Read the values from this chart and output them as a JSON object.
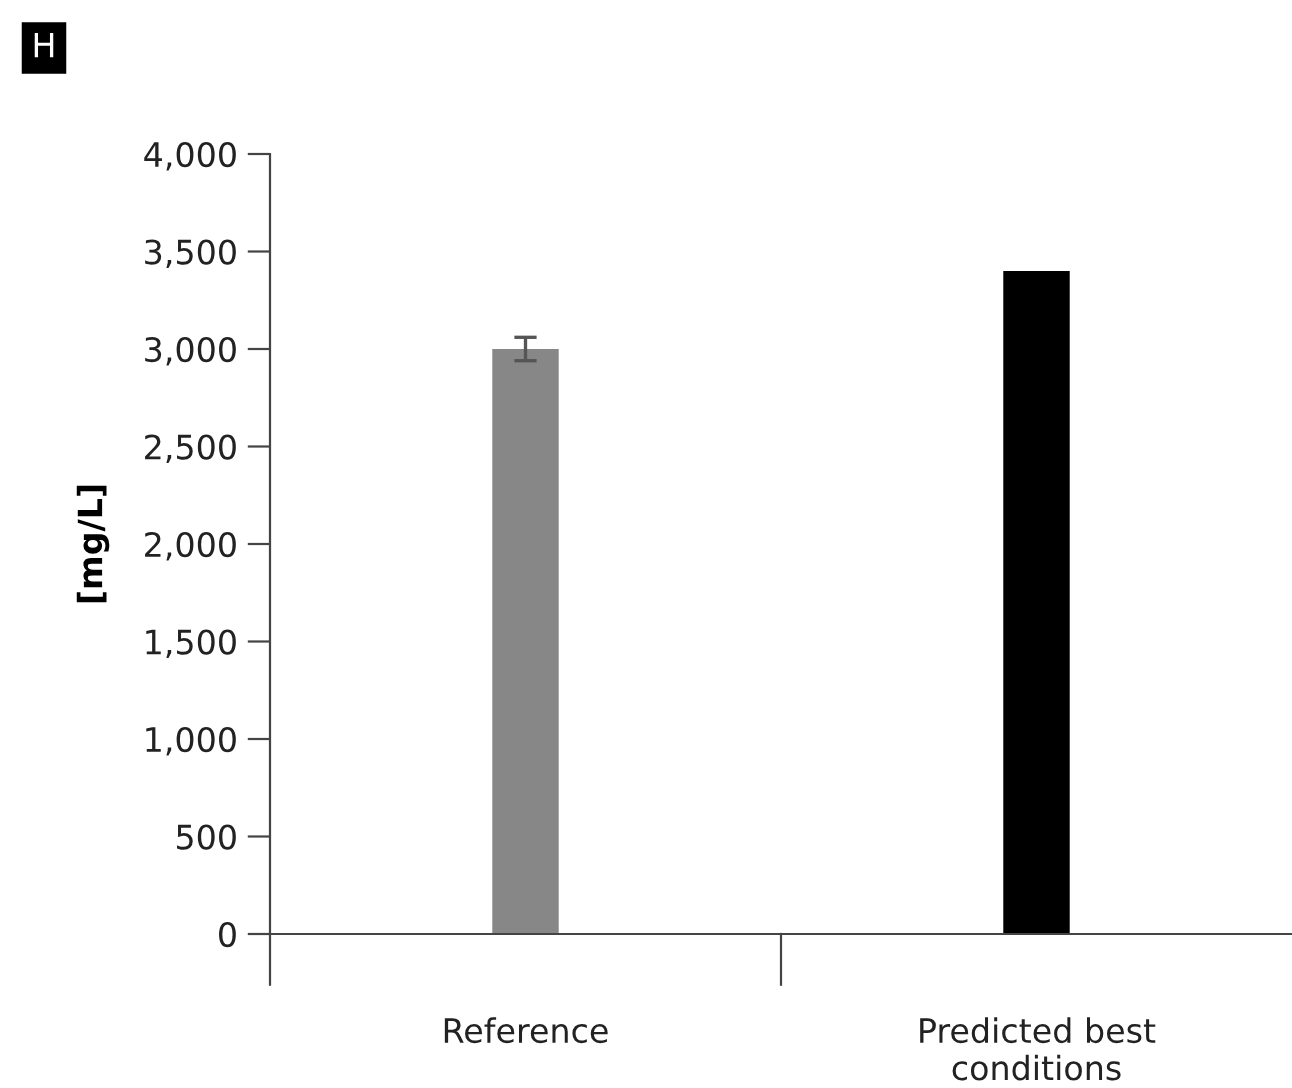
{
  "chart_data": {
    "type": "bar",
    "ylabel": "[mg/L]",
    "annotations": [
      "H"
    ],
    "categories": [
      "Reference",
      "Predicted best\nconditions"
    ],
    "values": [
      3000,
      3400
    ],
    "colors": [
      "#878787",
      "#000000"
    ],
    "errors": [
      60,
      null
    ],
    "ylim": [
      0,
      4000
    ],
    "yticks": [
      0,
      500,
      {
        "value": 1000,
        "label": "1,000"
      },
      {
        "value": 1500,
        "label": "1,500"
      },
      {
        "value": 2000,
        "label": "2,000"
      },
      {
        "value": 2500,
        "label": "2,500"
      },
      {
        "value": 3000,
        "label": "3,000"
      },
      {
        "value": 3500,
        "label": "3,500"
      },
      {
        "value": 4000,
        "label": "4,000"
      }
    ],
    "grid": false
  }
}
